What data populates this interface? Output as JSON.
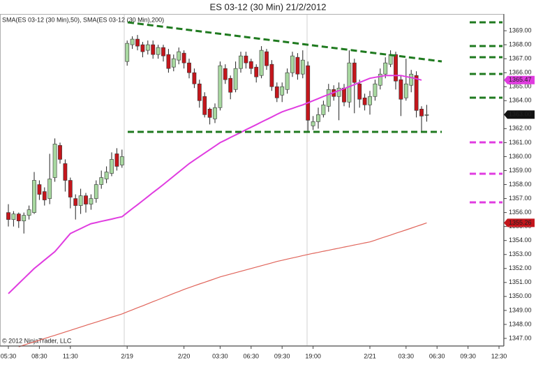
{
  "chart_data": {
    "type": "candlestick",
    "title": "ES 03-12 (30 Min)  21/2/2012",
    "legend": "SMA(ES 03-12 (30 Min),50), SMA(ES 03-12 (30 Min),200)",
    "copyright": "© 2012 NinjaTrader, LLC",
    "up_color": "#a8d8a0",
    "down_color": "#c4161c",
    "categories": [
      "05:30",
      null,
      null,
      null,
      null,
      null,
      "08:30",
      null,
      null,
      null,
      null,
      null,
      "11:30",
      null,
      null,
      null,
      null,
      null,
      null,
      null,
      null,
      null,
      null,
      "2/19",
      null,
      null,
      null,
      null,
      null,
      null,
      null,
      null,
      null,
      null,
      "2/20",
      null,
      null,
      null,
      null,
      null,
      null,
      "03:30",
      null,
      null,
      null,
      null,
      null,
      "06:30",
      null,
      null,
      null,
      null,
      null,
      "09:30",
      null,
      null,
      null,
      null,
      null,
      "19:00",
      null,
      null,
      null,
      null,
      null,
      null,
      null,
      null,
      null,
      null,
      "2/21",
      null,
      null,
      null,
      null,
      null,
      null,
      "03:30",
      null,
      null,
      null,
      null,
      null,
      "06:30",
      null,
      null,
      null,
      null,
      null,
      "09:30",
      null,
      null,
      null,
      null,
      null,
      "12:30"
    ],
    "open": [
      1356.0,
      1355.5,
      1355.9,
      1355.4,
      1355.8,
      1356.0,
      1358.0,
      1357.5,
      1357.0,
      1358.5,
      1360.8,
      1359.5,
      1358.3,
      1357.0,
      1356.5,
      1357.2,
      1356.6,
      1357.0,
      1358.0,
      1358.4,
      1358.8,
      1360.2,
      1359.4,
      1366.8,
      1368.0,
      1368.4,
      1368.0,
      1367.6,
      1368.0,
      1367.3,
      1367.8,
      1367.3,
      1366.4,
      1366.9,
      1367.4,
      1366.7,
      1366.0,
      1365.2,
      1364.3,
      1363.4,
      1362.7,
      1363.5,
      1366.3,
      1365.6,
      1364.8,
      1366.3,
      1367.2,
      1366.8,
      1366.4,
      1365.8,
      1367.5,
      1366.6,
      1365.0,
      1364.4,
      1364.8,
      1366.0,
      1367.1,
      1365.9,
      1366.5,
      1362.2,
      1362.5,
      1363.0,
      1363.6,
      1364.8,
      1364.3,
      1364.9,
      1363.9,
      1366.7,
      1365.2,
      1364.2,
      1363.7,
      1364.3,
      1365.1,
      1365.9,
      1366.6,
      1367.3,
      1365.5,
      1364.2,
      1365.1,
      1365.8,
      1363.4,
      1363.0,
      null,
      null,
      null,
      null,
      null,
      null,
      null,
      null,
      null,
      null,
      null,
      null,
      null,
      null
    ],
    "high": [
      1356.6,
      1356.1,
      1356.0,
      1356.0,
      1356.5,
      1358.9,
      1358.3,
      1357.8,
      1360.2,
      1361.3,
      1361.0,
      1359.8,
      1358.5,
      1357.3,
      1357.7,
      1357.4,
      1357.3,
      1358.3,
      1359.0,
      1359.3,
      1360.3,
      1360.6,
      1360.5,
      1368.3,
      1368.6,
      1368.7,
      1368.2,
      1368.3,
      1368.3,
      1368.0,
      1368.0,
      1367.7,
      1367.3,
      1367.8,
      1367.6,
      1367.0,
      1366.3,
      1365.5,
      1364.6,
      1363.5,
      1363.8,
      1366.8,
      1366.6,
      1365.8,
      1366.8,
      1367.5,
      1367.5,
      1367.0,
      1366.6,
      1367.9,
      1367.7,
      1366.9,
      1365.3,
      1365.3,
      1366.3,
      1367.5,
      1367.4,
      1367.6,
      1366.8,
      1362.9,
      1363.5,
      1364.0,
      1365.2,
      1365.1,
      1365.3,
      1365.2,
      1367.6,
      1367.0,
      1365.5,
      1364.5,
      1364.7,
      1365.5,
      1366.3,
      1367.1,
      1367.6,
      1367.5,
      1365.8,
      1367.0,
      1366.2,
      1366.1,
      1363.6,
      1363.7,
      null,
      null,
      null,
      null,
      null,
      null,
      null,
      null,
      null,
      null,
      null,
      null,
      null,
      null
    ],
    "low": [
      1355.0,
      1355.0,
      1354.9,
      1354.5,
      1355.5,
      1355.9,
      1356.9,
      1356.5,
      1356.6,
      1358.2,
      1359.5,
      1357.5,
      1356.3,
      1355.5,
      1355.9,
      1356.0,
      1356.2,
      1356.7,
      1357.7,
      1358.1,
      1358.6,
      1359.0,
      1359.2,
      1366.5,
      1367.7,
      1367.6,
      1367.1,
      1367.3,
      1367.0,
      1367.0,
      1366.8,
      1366.0,
      1366.1,
      1366.6,
      1366.3,
      1365.6,
      1364.9,
      1363.5,
      1362.8,
      1362.3,
      1362.4,
      1363.3,
      1365.2,
      1364.1,
      1364.6,
      1366.0,
      1366.3,
      1365.9,
      1365.3,
      1365.6,
      1366.2,
      1364.7,
      1363.9,
      1363.9,
      1364.5,
      1365.7,
      1365.5,
      1365.6,
      1361.7,
      1361.9,
      1362.0,
      1362.8,
      1363.2,
      1364.0,
      1362.6,
      1363.6,
      1363.5,
      1363.1,
      1363.5,
      1363.3,
      1363.0,
      1364.0,
      1364.8,
      1365.6,
      1366.4,
      1364.8,
      1362.9,
      1364.0,
      1364.6,
      1362.8,
      1361.8,
      1362.5,
      null,
      null,
      null,
      null,
      null,
      null,
      null,
      null,
      null,
      null,
      null,
      null,
      null,
      null
    ],
    "close": [
      1355.5,
      1355.9,
      1355.4,
      1355.8,
      1356.2,
      1358.3,
      1357.3,
      1356.9,
      1358.4,
      1360.9,
      1359.8,
      1358.3,
      1357.1,
      1356.5,
      1357.2,
      1356.6,
      1357.0,
      1358.0,
      1358.5,
      1358.9,
      1359.8,
      1359.3,
      1360.0,
      1368.1,
      1368.4,
      1367.9,
      1367.5,
      1368.0,
      1367.3,
      1367.8,
      1367.2,
      1366.3,
      1367.0,
      1367.5,
      1366.7,
      1366.0,
      1365.2,
      1364.0,
      1363.0,
      1362.8,
      1363.5,
      1366.5,
      1365.5,
      1364.6,
      1366.3,
      1367.2,
      1366.7,
      1366.3,
      1365.7,
      1367.6,
      1366.5,
      1365.0,
      1364.2,
      1365.0,
      1366.0,
      1367.2,
      1365.9,
      1366.9,
      1362.6,
      1362.5,
      1363.0,
      1363.7,
      1364.8,
      1364.3,
      1364.9,
      1363.9,
      1366.7,
      1365.3,
      1364.1,
      1363.7,
      1364.3,
      1365.2,
      1365.9,
      1366.7,
      1367.3,
      1365.4,
      1364.1,
      1365.2,
      1365.9,
      1363.3,
      1362.9,
      1363.0,
      null,
      null,
      null,
      null,
      null,
      null,
      null,
      null,
      null,
      null,
      null,
      null,
      null,
      null
    ],
    "series": [
      {
        "color": "#e03ce0",
        "values": [
          1350.2,
          1350.56,
          1350.92,
          1351.28,
          1351.64,
          1352.0,
          1352.3,
          1352.6,
          1352.9,
          1353.2,
          1353.63,
          1354.07,
          1354.5,
          1354.68,
          1354.85,
          1355.03,
          1355.2,
          1355.28,
          1355.37,
          1355.45,
          1355.53,
          1355.62,
          1355.7,
          1355.99,
          1356.28,
          1356.56,
          1356.85,
          1357.14,
          1357.43,
          1357.71,
          1358.0,
          1358.3,
          1358.6,
          1358.9,
          1359.2,
          1359.5,
          1359.75,
          1360.0,
          1360.25,
          1360.5,
          1360.75,
          1361.0,
          1361.18,
          1361.37,
          1361.55,
          1361.73,
          1361.92,
          1362.1,
          1362.28,
          1362.47,
          1362.65,
          1362.83,
          1363.02,
          1363.2,
          1363.33,
          1363.45,
          1363.58,
          1363.7,
          1363.85,
          1364.0,
          1364.15,
          1364.3,
          1364.44,
          1364.58,
          1364.72,
          1364.86,
          1365.0,
          1365.15,
          1365.3,
          1365.45,
          1365.6,
          1365.67,
          1365.73,
          1365.8,
          1365.8,
          1365.8,
          1365.8,
          1365.72,
          1365.65,
          1365.57,
          1365.47,
          null,
          null,
          null,
          null,
          null,
          null,
          null,
          null,
          null,
          null,
          null,
          null,
          null,
          null,
          null
        ]
      },
      {
        "color": "#e0645a",
        "values": [
          null,
          null,
          1346.4,
          1346.52,
          1346.64,
          1346.75,
          1346.87,
          1346.99,
          1347.11,
          1347.22,
          1347.34,
          1347.46,
          1347.58,
          1347.69,
          1347.81,
          1347.93,
          1348.05,
          1348.16,
          1348.28,
          1348.4,
          1348.52,
          1348.63,
          1348.75,
          1348.9,
          1349.04,
          1349.19,
          1349.33,
          1349.48,
          1349.63,
          1349.77,
          1349.92,
          1350.06,
          1350.21,
          1350.35,
          1350.5,
          1350.63,
          1350.76,
          1350.89,
          1351.01,
          1351.14,
          1351.27,
          1351.4,
          1351.5,
          1351.6,
          1351.7,
          1351.8,
          1351.9,
          1352.0,
          1352.1,
          1352.2,
          1352.3,
          1352.4,
          1352.5,
          1352.58,
          1352.67,
          1352.75,
          1352.83,
          1352.92,
          1353.0,
          1353.08,
          1353.15,
          1353.23,
          1353.3,
          1353.38,
          1353.45,
          1353.53,
          1353.6,
          1353.68,
          1353.75,
          1353.83,
          1353.9,
          1354.02,
          1354.15,
          1354.27,
          1354.39,
          1354.52,
          1354.64,
          1354.76,
          1354.88,
          1355.01,
          1355.13,
          1355.26,
          null,
          null,
          null,
          null,
          null,
          null,
          null,
          null,
          null,
          null,
          null,
          null,
          null,
          null
        ]
      }
    ],
    "price_markers": [
      {
        "value": 1365.47,
        "label": "1365.47",
        "color": "#e03ce0"
      },
      {
        "value": 1363.0,
        "label": "1363.00",
        "color": "#111111"
      },
      {
        "value": 1355.26,
        "label": "1355.26",
        "color": "#c4161c"
      }
    ],
    "ylim": [
      1346.5,
      1370.2
    ],
    "yticks": [
      {
        "value": 1347,
        "label": "1347.00"
      },
      {
        "value": 1348,
        "label": "1348.00"
      },
      {
        "value": 1349,
        "label": "1349.00"
      },
      {
        "value": 1350,
        "label": "1350.00"
      },
      {
        "value": 1351,
        "label": "1351.00"
      },
      {
        "value": 1352,
        "label": "1352.00"
      },
      {
        "value": 1353,
        "label": "1353.00"
      },
      {
        "value": 1354,
        "label": "1354.00"
      },
      {
        "value": 1355,
        "label": "1355.00"
      },
      {
        "value": 1356,
        "label": "1356.00"
      },
      {
        "value": 1357,
        "label": "1357.00"
      },
      {
        "value": 1358,
        "label": "1358.00"
      },
      {
        "value": 1359,
        "label": "1359.00"
      },
      {
        "value": 1360,
        "label": "1360.00"
      },
      {
        "value": 1361,
        "label": "1361.00"
      },
      {
        "value": 1362,
        "label": "1362.00"
      },
      {
        "value": 1363,
        "label": "1363.00"
      },
      {
        "value": 1364,
        "label": "1364.00"
      },
      {
        "value": 1365,
        "label": "1365.00"
      },
      {
        "value": 1366,
        "label": "1366.00"
      },
      {
        "value": 1367,
        "label": "1367.00"
      },
      {
        "value": 1368,
        "label": "1368.00"
      },
      {
        "value": 1369,
        "label": "1369.00"
      }
    ]
  }
}
